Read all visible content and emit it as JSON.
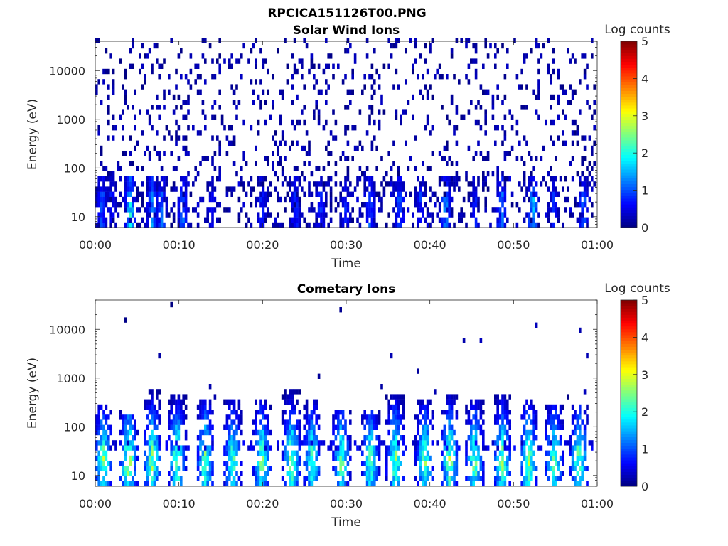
{
  "figure": {
    "title": "RPCICA151126T00.PNG"
  },
  "colorbar": {
    "label": "Log counts",
    "ticks": [
      0,
      1,
      2,
      3,
      4,
      5
    ],
    "range": [
      0,
      5
    ],
    "colormap": "jet"
  },
  "chart_data": [
    {
      "type": "heatmap",
      "title": "Solar Wind Ions",
      "xlabel": "Time",
      "ylabel": "Energy (eV)",
      "x_ticks": [
        "00:00",
        "00:10",
        "00:20",
        "00:30",
        "00:40",
        "00:50",
        "01:00"
      ],
      "x_range_minutes": [
        0,
        60
      ],
      "y_scale": "log",
      "y_ticks": [
        10,
        100,
        1000,
        10000
      ],
      "y_range": [
        6,
        40000
      ],
      "z_label": "Log counts",
      "z_range": [
        0,
        5
      ],
      "pattern": "sparse counts (log ~0-0.5) across all energies; stronger bursts (log ~0.5-2) below ~60 eV",
      "bursts": [
        {
          "t": 0.8,
          "z": 1.2
        },
        {
          "t": 2.0,
          "z": 0.8
        },
        {
          "t": 4.2,
          "z": 2.0
        },
        {
          "t": 6.8,
          "z": 1.5
        },
        {
          "t": 8.0,
          "z": 1.2
        },
        {
          "t": 10.5,
          "z": 1.3
        },
        {
          "t": 14.0,
          "z": 0.7
        },
        {
          "t": 20.0,
          "z": 0.9
        },
        {
          "t": 24.0,
          "z": 1.0
        },
        {
          "t": 27.0,
          "z": 1.0
        },
        {
          "t": 30.0,
          "z": 0.8
        },
        {
          "t": 33.0,
          "z": 1.2
        },
        {
          "t": 36.5,
          "z": 1.2
        },
        {
          "t": 39.0,
          "z": 0.9
        },
        {
          "t": 42.0,
          "z": 1.5
        },
        {
          "t": 45.5,
          "z": 0.9
        },
        {
          "t": 48.7,
          "z": 1.4
        },
        {
          "t": 52.5,
          "z": 1.8
        },
        {
          "t": 55.0,
          "z": 0.9
        },
        {
          "t": 58.5,
          "z": 1.3
        }
      ]
    },
    {
      "type": "heatmap",
      "title": "Cometary Ions",
      "xlabel": "Time",
      "ylabel": "Energy (eV)",
      "x_ticks": [
        "00:00",
        "00:10",
        "00:20",
        "00:30",
        "00:40",
        "00:50",
        "01:00"
      ],
      "x_range_minutes": [
        0,
        60
      ],
      "y_scale": "log",
      "y_ticks": [
        10,
        100,
        1000,
        10000
      ],
      "y_range": [
        6,
        40000
      ],
      "z_label": "Log counts",
      "z_range": [
        0,
        5
      ],
      "pattern": "periodic bursts ~every 3 min from ~6 eV up to ~300-600 eV, peak log counts ~2.5-2.8 near 15-30 eV",
      "bursts": [
        {
          "t": 1.0,
          "top": 300,
          "z": 2.5
        },
        {
          "t": 4.0,
          "top": 200,
          "z": 2.8
        },
        {
          "t": 6.8,
          "top": 600,
          "z": 2.6
        },
        {
          "t": 9.8,
          "top": 500,
          "z": 2.6
        },
        {
          "t": 13.2,
          "top": 400,
          "z": 2.4
        },
        {
          "t": 16.5,
          "top": 350,
          "z": 2.3
        },
        {
          "t": 20.0,
          "top": 400,
          "z": 2.5
        },
        {
          "t": 23.5,
          "top": 600,
          "z": 2.6
        },
        {
          "t": 26.0,
          "top": 350,
          "z": 2.2
        },
        {
          "t": 29.5,
          "top": 250,
          "z": 2.4
        },
        {
          "t": 33.0,
          "top": 250,
          "z": 2.3
        },
        {
          "t": 36.0,
          "top": 500,
          "z": 2.6
        },
        {
          "t": 39.5,
          "top": 400,
          "z": 2.4
        },
        {
          "t": 42.5,
          "top": 500,
          "z": 2.6
        },
        {
          "t": 45.5,
          "top": 400,
          "z": 2.5
        },
        {
          "t": 48.8,
          "top": 450,
          "z": 2.5
        },
        {
          "t": 52.0,
          "top": 400,
          "z": 2.6
        },
        {
          "t": 55.0,
          "top": 300,
          "z": 2.4
        },
        {
          "t": 58.0,
          "top": 300,
          "z": 2.6
        }
      ]
    }
  ]
}
